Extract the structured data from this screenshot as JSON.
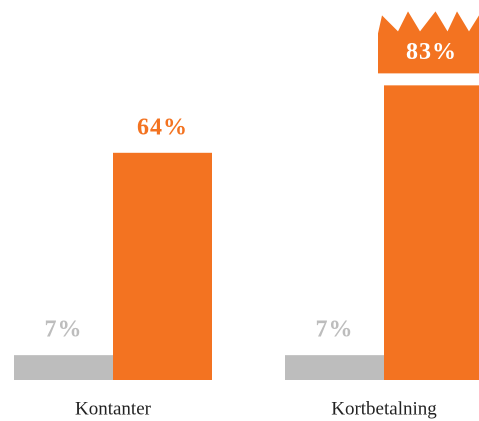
{
  "chart_data": {
    "type": "bar",
    "categories": [
      "Kontanter",
      "Kortbetalning"
    ],
    "series": [
      {
        "color": "#bdbdbd",
        "values": [
          7,
          7
        ],
        "value_labels": [
          "7%",
          "7%"
        ]
      },
      {
        "color": "#f37321",
        "values": [
          64,
          83
        ],
        "value_labels": [
          "64%",
          "83%"
        ]
      }
    ]
  }
}
